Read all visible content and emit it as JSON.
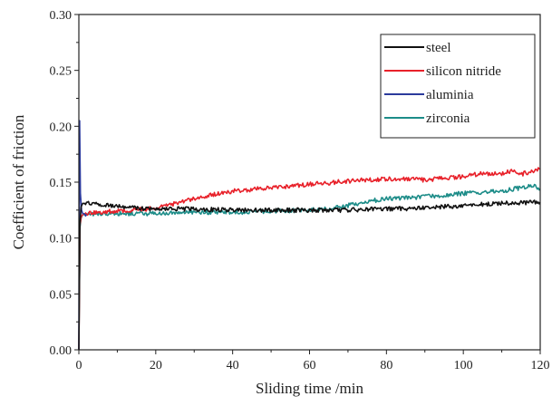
{
  "chart_data": {
    "type": "line",
    "title": "",
    "xlabel": "Sliding time /min",
    "ylabel": "Coefficient of friction",
    "xlim": [
      0,
      120
    ],
    "ylim": [
      0,
      0.3
    ],
    "x_ticks": [
      "0",
      "20",
      "40",
      "60",
      "80",
      "100",
      "120"
    ],
    "y_ticks": [
      "0.00",
      "0.05",
      "0.10",
      "0.15",
      "0.20",
      "0.25",
      "0.30"
    ],
    "grid": false,
    "legend_position": "top-right",
    "series": [
      {
        "name": "steel",
        "color": "#111111",
        "x": [
          0,
          0.3,
          0.6,
          1,
          2,
          5,
          10,
          15,
          20,
          30,
          40,
          50,
          60,
          70,
          80,
          90,
          100,
          110,
          120
        ],
        "y": [
          0.0,
          0.115,
          0.128,
          0.131,
          0.131,
          0.13,
          0.128,
          0.127,
          0.126,
          0.126,
          0.125,
          0.125,
          0.125,
          0.125,
          0.126,
          0.127,
          0.129,
          0.131,
          0.132
        ]
      },
      {
        "name": "silicon nitride",
        "color": "#e8212a",
        "x": [
          0,
          0.3,
          0.6,
          1,
          2,
          5,
          10,
          15,
          20,
          25,
          30,
          35,
          40,
          50,
          60,
          70,
          80,
          90,
          100,
          105,
          110,
          113,
          115,
          120
        ],
        "y": [
          0.0,
          0.112,
          0.119,
          0.121,
          0.122,
          0.123,
          0.124,
          0.125,
          0.127,
          0.131,
          0.135,
          0.139,
          0.142,
          0.145,
          0.148,
          0.151,
          0.153,
          0.152,
          0.155,
          0.158,
          0.157,
          0.161,
          0.157,
          0.162
        ]
      },
      {
        "name": "aluminia",
        "color": "#2b3a9c",
        "x": [
          0,
          0.2,
          0.4,
          0.7,
          1,
          2
        ],
        "y": [
          0.0,
          0.205,
          0.14,
          0.125,
          0.122,
          0.121
        ]
      },
      {
        "name": "zirconia",
        "color": "#1c8c88",
        "x": [
          0,
          0.3,
          0.6,
          1,
          2,
          5,
          10,
          20,
          30,
          40,
          50,
          60,
          65,
          70,
          75,
          80,
          90,
          100,
          110,
          115,
          118,
          120
        ],
        "y": [
          0.0,
          0.11,
          0.118,
          0.121,
          0.121,
          0.122,
          0.122,
          0.122,
          0.123,
          0.123,
          0.124,
          0.125,
          0.126,
          0.129,
          0.133,
          0.135,
          0.137,
          0.14,
          0.142,
          0.145,
          0.147,
          0.144
        ]
      }
    ]
  }
}
